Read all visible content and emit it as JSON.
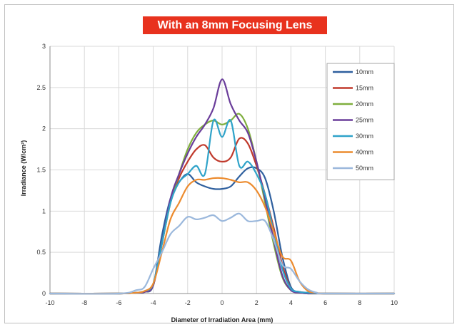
{
  "chart_data": {
    "type": "line",
    "title": "With an 8mm Focusing Lens",
    "xlabel": "Diameter of Irradiation Area (mm)",
    "ylabel": "Irradiance (W/cm²)",
    "xlim": [
      -10,
      10
    ],
    "ylim": [
      0,
      3
    ],
    "x_ticks": [
      "-10",
      "-8",
      "-6",
      "-4",
      "-2",
      "0",
      "2",
      "4",
      "6",
      "8",
      "10"
    ],
    "y_ticks": [
      "0",
      "0.5",
      "1",
      "1.5",
      "2",
      "2.5",
      "3"
    ],
    "grid": true,
    "legend_position": "top-right",
    "series": [
      {
        "name": "10mm",
        "color": "#2e5f9e",
        "x": [
          -10,
          -6,
          -5,
          -4.5,
          -4,
          -3.5,
          -3,
          -2.5,
          -2,
          -1.5,
          -1,
          -0.5,
          0,
          0.5,
          1,
          1.5,
          2,
          2.5,
          3,
          3.5,
          4,
          4.5,
          5,
          6,
          10
        ],
        "y": [
          0,
          0,
          0.01,
          0.02,
          0.1,
          0.7,
          1.15,
          1.35,
          1.45,
          1.35,
          1.3,
          1.27,
          1.27,
          1.3,
          1.42,
          1.52,
          1.52,
          1.4,
          1.0,
          0.45,
          0.08,
          0.02,
          0.01,
          0,
          0
        ]
      },
      {
        "name": "15mm",
        "color": "#c0392b",
        "x": [
          -10,
          -6,
          -5,
          -4.5,
          -4,
          -3.5,
          -3,
          -2.5,
          -2,
          -1.5,
          -1,
          -0.5,
          0,
          0.5,
          1,
          1.5,
          2,
          2.5,
          3,
          3.5,
          4,
          4.5,
          5,
          6,
          10
        ],
        "y": [
          0,
          0,
          0.01,
          0.02,
          0.1,
          0.6,
          1.1,
          1.4,
          1.6,
          1.75,
          1.8,
          1.65,
          1.6,
          1.65,
          1.88,
          1.82,
          1.55,
          1.2,
          0.8,
          0.35,
          0.06,
          0.02,
          0.01,
          0,
          0
        ]
      },
      {
        "name": "20mm",
        "color": "#7fae3d",
        "x": [
          -10,
          -6,
          -5,
          -4.5,
          -4,
          -3.5,
          -3,
          -2.5,
          -2,
          -1.5,
          -1,
          -0.5,
          0,
          0.5,
          1,
          1.5,
          2,
          2.5,
          3,
          3.5,
          4,
          4.5,
          5,
          6,
          10
        ],
        "y": [
          0,
          0,
          0.01,
          0.02,
          0.1,
          0.6,
          1.1,
          1.45,
          1.75,
          1.95,
          2.05,
          2.1,
          2.05,
          2.1,
          2.18,
          2.0,
          1.6,
          1.1,
          0.6,
          0.2,
          0.04,
          0.01,
          0,
          0,
          0
        ]
      },
      {
        "name": "25mm",
        "color": "#6a3d9a",
        "x": [
          -10,
          -6,
          -5,
          -4.5,
          -4,
          -3.5,
          -3,
          -2.5,
          -2,
          -1.5,
          -1,
          -0.5,
          0,
          0.5,
          1,
          1.5,
          2,
          2.5,
          3,
          3.5,
          4,
          4.5,
          5,
          6,
          10
        ],
        "y": [
          0,
          0,
          0.01,
          0.02,
          0.1,
          0.6,
          1.15,
          1.45,
          1.7,
          1.9,
          2.05,
          2.25,
          2.6,
          2.3,
          2.1,
          1.95,
          1.6,
          1.15,
          0.65,
          0.22,
          0.04,
          0.01,
          0,
          0,
          0
        ]
      },
      {
        "name": "30mm",
        "color": "#2fa3c9",
        "x": [
          -10,
          -6,
          -5,
          -4.5,
          -4,
          -3.5,
          -3,
          -2.5,
          -2,
          -1.5,
          -1,
          -0.5,
          0,
          0.5,
          1,
          1.5,
          2,
          2.5,
          3,
          3.5,
          4,
          4.5,
          5,
          6,
          10
        ],
        "y": [
          0,
          0,
          0.01,
          0.03,
          0.12,
          0.6,
          1.1,
          1.35,
          1.45,
          1.55,
          1.45,
          2.1,
          1.9,
          2.1,
          1.55,
          1.6,
          1.45,
          1.2,
          0.75,
          0.3,
          0.06,
          0.02,
          0.01,
          0,
          0
        ]
      },
      {
        "name": "40mm",
        "color": "#ec8b2e",
        "x": [
          -10,
          -6,
          -5,
          -4.5,
          -4,
          -3.5,
          -3,
          -2.5,
          -2,
          -1.5,
          -1,
          -0.5,
          0,
          0.5,
          1,
          1.5,
          2,
          2.5,
          3,
          3.5,
          4,
          4.5,
          5,
          5.5,
          6,
          10
        ],
        "y": [
          0,
          0,
          0.01,
          0.03,
          0.12,
          0.5,
          0.9,
          1.1,
          1.3,
          1.38,
          1.38,
          1.4,
          1.4,
          1.38,
          1.35,
          1.35,
          1.25,
          1.05,
          0.75,
          0.45,
          0.4,
          0.15,
          0.03,
          0.01,
          0,
          0
        ]
      },
      {
        "name": "50mm",
        "color": "#9bb8dc",
        "x": [
          -10,
          -6,
          -5,
          -4.5,
          -4,
          -3.5,
          -3,
          -2.5,
          -2,
          -1.5,
          -1,
          -0.5,
          0,
          0.5,
          1,
          1.5,
          2,
          2.5,
          3,
          3.5,
          4,
          4.5,
          5,
          5.5,
          6,
          10
        ],
        "y": [
          0,
          0,
          0.04,
          0.08,
          0.3,
          0.5,
          0.72,
          0.82,
          0.93,
          0.9,
          0.92,
          0.95,
          0.88,
          0.92,
          0.97,
          0.88,
          0.88,
          0.88,
          0.65,
          0.35,
          0.3,
          0.15,
          0.05,
          0.01,
          0,
          0
        ]
      }
    ]
  }
}
